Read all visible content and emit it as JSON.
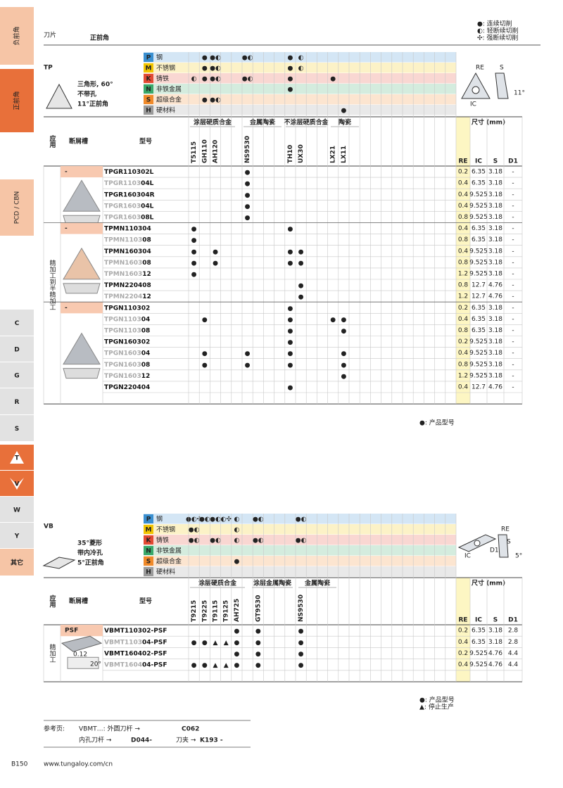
{
  "sidebar": [
    "负前角",
    "正前角",
    "PCD / CBN",
    "C",
    "D",
    "G",
    "R",
    "S",
    "T",
    "V",
    "W",
    "Y",
    "其它"
  ],
  "header": {
    "title": "刀片",
    "subtitle": "正前角",
    "legend": [
      "●: 连续切削",
      "◐: 轻断续切削",
      "✣: 强断续切削"
    ]
  },
  "table_headers": {
    "application": "应用",
    "chipbreaker": "断屑槽",
    "model": "型号",
    "dimensions": "尺寸 (mm)",
    "dims": [
      "RE",
      "IC",
      "S",
      "D1"
    ]
  },
  "tp": {
    "code": "TP",
    "description": [
      "三角形, 60°",
      "不带孔",
      "11°正前角"
    ],
    "diagram": [
      "RE",
      "S",
      "IC",
      "11°"
    ],
    "materials": [
      {
        "letter": "P",
        "name": "钢",
        "color": "#3a8fd0",
        "cells": [
          null,
          "●",
          "●◐",
          null,
          null,
          "●◐",
          null,
          null,
          null,
          "●",
          "◐",
          null,
          null,
          null,
          null
        ]
      },
      {
        "letter": "M",
        "name": "不锈钢",
        "color": "#f2c500",
        "cells": [
          null,
          "●",
          "●◐",
          null,
          null,
          null,
          null,
          null,
          null,
          "●",
          "◐",
          null,
          null,
          null,
          null
        ]
      },
      {
        "letter": "K",
        "name": "铸铁",
        "color": "#e24a33",
        "cells": [
          "◐",
          "●",
          "●◐",
          null,
          null,
          "●◐",
          null,
          null,
          null,
          "●",
          null,
          null,
          null,
          "●",
          null
        ]
      },
      {
        "letter": "N",
        "name": "非铁金属",
        "color": "#39a86a",
        "cells": [
          null,
          null,
          null,
          null,
          null,
          null,
          null,
          null,
          null,
          "●",
          null,
          null,
          null,
          null,
          null
        ]
      },
      {
        "letter": "S",
        "name": "超级合金",
        "color": "#f08a2a",
        "cells": [
          null,
          "●",
          "●◐",
          null,
          null,
          null,
          null,
          null,
          null,
          null,
          null,
          null,
          null,
          null,
          null
        ]
      },
      {
        "letter": "H",
        "name": "硬材料",
        "color": "#9a9a9a",
        "cells": [
          null,
          null,
          null,
          null,
          null,
          null,
          null,
          null,
          null,
          null,
          null,
          null,
          null,
          null,
          "●"
        ]
      }
    ],
    "grade_groups": [
      "涂层硬质合金",
      "金属陶瓷",
      "不涂层硬质合金",
      "陶瓷"
    ],
    "grades": [
      "T5115",
      "GH110",
      "AH120",
      null,
      null,
      "NS9530",
      null,
      null,
      null,
      "TH10",
      "UX30",
      null,
      null,
      "LX21",
      "LX11"
    ],
    "application": "精加工到半精加工",
    "groups": [
      {
        "chipbreaker": "-",
        "rows": [
          {
            "model": "TPGR110302L",
            "cells": [
              null,
              null,
              null,
              null,
              null,
              "●",
              null,
              null,
              null,
              null,
              null,
              null,
              null,
              null,
              null
            ],
            "re": 0.2,
            "ic": 6.35,
            "s": 3.18,
            "d1": "-"
          },
          {
            "model": "TPGR1103",
            "suffix": "04L",
            "cells": [
              null,
              null,
              null,
              null,
              null,
              "●",
              null,
              null,
              null,
              null,
              null,
              null,
              null,
              null,
              null
            ],
            "re": 0.4,
            "ic": 6.35,
            "s": 3.18,
            "d1": "-"
          },
          {
            "model": "TPGR160304R",
            "cells": [
              null,
              null,
              null,
              null,
              null,
              "●",
              null,
              null,
              null,
              null,
              null,
              null,
              null,
              null,
              null
            ],
            "re": 0.4,
            "ic": 9.525,
            "s": 3.18,
            "d1": "-"
          },
          {
            "model": "TPGR1603",
            "suffix": "04L",
            "cells": [
              null,
              null,
              null,
              null,
              null,
              "●",
              null,
              null,
              null,
              null,
              null,
              null,
              null,
              null,
              null
            ],
            "re": 0.4,
            "ic": 9.525,
            "s": 3.18,
            "d1": "-"
          },
          {
            "model": "TPGR1603",
            "suffix": "08L",
            "cells": [
              null,
              null,
              null,
              null,
              null,
              "●",
              null,
              null,
              null,
              null,
              null,
              null,
              null,
              null,
              null
            ],
            "re": 0.8,
            "ic": 9.525,
            "s": 3.18,
            "d1": "-"
          }
        ]
      },
      {
        "chipbreaker": "-",
        "rows": [
          {
            "model": "TPMN110304",
            "cells": [
              "●",
              null,
              null,
              null,
              null,
              null,
              null,
              null,
              null,
              "●",
              null,
              null,
              null,
              null,
              null
            ],
            "re": 0.4,
            "ic": 6.35,
            "s": 3.18,
            "d1": "-"
          },
          {
            "model": "TPMN1103",
            "suffix": "08",
            "cells": [
              "●",
              null,
              null,
              null,
              null,
              null,
              null,
              null,
              null,
              null,
              null,
              null,
              null,
              null,
              null
            ],
            "re": 0.8,
            "ic": 6.35,
            "s": 3.18,
            "d1": "-"
          },
          {
            "model": "TPMN160304",
            "cells": [
              "●",
              null,
              "●",
              null,
              null,
              null,
              null,
              null,
              null,
              "●",
              "●",
              null,
              null,
              null,
              null
            ],
            "re": 0.4,
            "ic": 9.525,
            "s": 3.18,
            "d1": "-"
          },
          {
            "model": "TPMN1603",
            "suffix": "08",
            "cells": [
              "●",
              null,
              "●",
              null,
              null,
              null,
              null,
              null,
              null,
              "●",
              "●",
              null,
              null,
              null,
              null
            ],
            "re": 0.8,
            "ic": 9.525,
            "s": 3.18,
            "d1": "-"
          },
          {
            "model": "TPMN1603",
            "suffix": "12",
            "cells": [
              "●",
              null,
              null,
              null,
              null,
              null,
              null,
              null,
              null,
              null,
              null,
              null,
              null,
              null,
              null
            ],
            "re": 1.2,
            "ic": 9.525,
            "s": 3.18,
            "d1": "-"
          },
          {
            "model": "TPMN220408",
            "cells": [
              null,
              null,
              null,
              null,
              null,
              null,
              null,
              null,
              null,
              null,
              "●",
              null,
              null,
              null,
              null
            ],
            "re": 0.8,
            "ic": 12.7,
            "s": 4.76,
            "d1": "-"
          },
          {
            "model": "TPMN2204",
            "suffix": "12",
            "cells": [
              null,
              null,
              null,
              null,
              null,
              null,
              null,
              null,
              null,
              null,
              "●",
              null,
              null,
              null,
              null
            ],
            "re": 1.2,
            "ic": 12.7,
            "s": 4.76,
            "d1": "-"
          }
        ]
      },
      {
        "chipbreaker": "-",
        "rows": [
          {
            "model": "TPGN110302",
            "cells": [
              null,
              null,
              null,
              null,
              null,
              null,
              null,
              null,
              null,
              "●",
              null,
              null,
              null,
              null,
              null
            ],
            "re": 0.2,
            "ic": 6.35,
            "s": 3.18,
            "d1": "-"
          },
          {
            "model": "TPGN1103",
            "suffix": "04",
            "cells": [
              null,
              "●",
              null,
              null,
              null,
              null,
              null,
              null,
              null,
              "●",
              null,
              null,
              null,
              "●",
              "●"
            ],
            "re": 0.4,
            "ic": 6.35,
            "s": 3.18,
            "d1": "-"
          },
          {
            "model": "TPGN1103",
            "suffix": "08",
            "cells": [
              null,
              null,
              null,
              null,
              null,
              null,
              null,
              null,
              null,
              "●",
              null,
              null,
              null,
              null,
              "●"
            ],
            "re": 0.8,
            "ic": 6.35,
            "s": 3.18,
            "d1": "-"
          },
          {
            "model": "TPGN160302",
            "cells": [
              null,
              null,
              null,
              null,
              null,
              null,
              null,
              null,
              null,
              "●",
              null,
              null,
              null,
              null,
              null
            ],
            "re": 0.2,
            "ic": 9.525,
            "s": 3.18,
            "d1": "-"
          },
          {
            "model": "TPGN1603",
            "suffix": "04",
            "cells": [
              null,
              "●",
              null,
              null,
              null,
              "●",
              null,
              null,
              null,
              "●",
              null,
              null,
              null,
              null,
              "●"
            ],
            "re": 0.4,
            "ic": 9.525,
            "s": 3.18,
            "d1": "-"
          },
          {
            "model": "TPGN1603",
            "suffix": "08",
            "cells": [
              null,
              "●",
              null,
              null,
              null,
              "●",
              null,
              null,
              null,
              "●",
              null,
              null,
              null,
              null,
              "●"
            ],
            "re": 0.8,
            "ic": 9.525,
            "s": 3.18,
            "d1": "-"
          },
          {
            "model": "TPGN1603",
            "suffix": "12",
            "cells": [
              null,
              null,
              null,
              null,
              null,
              null,
              null,
              null,
              null,
              null,
              null,
              null,
              null,
              null,
              "●"
            ],
            "re": 1.2,
            "ic": 9.525,
            "s": 3.18,
            "d1": "-"
          },
          {
            "model": "TPGN220404",
            "cells": [
              null,
              null,
              null,
              null,
              null,
              null,
              null,
              null,
              null,
              "●",
              null,
              null,
              null,
              null,
              null
            ],
            "re": 0.4,
            "ic": 12.7,
            "s": 4.76,
            "d1": "-"
          }
        ]
      }
    ],
    "footnotes": [
      "●: 产品型号"
    ]
  },
  "vb": {
    "code": "VB",
    "description": [
      "35°菱形",
      "带内冷孔",
      "5°正前角"
    ],
    "diagram": [
      "RE",
      "S",
      "IC",
      "D1",
      "5°"
    ],
    "materials": [
      {
        "letter": "P",
        "name": "钢",
        "color": "#3a8fd0",
        "cells": [
          "●◐✣",
          "●◐",
          "●◐",
          "◐✣",
          "◐",
          null,
          "●◐",
          null,
          null,
          null,
          "●◐"
        ]
      },
      {
        "letter": "M",
        "name": "不锈钢",
        "color": "#f2c500",
        "cells": [
          "●◐",
          null,
          null,
          null,
          "◐",
          null,
          null,
          null,
          null,
          null,
          null
        ]
      },
      {
        "letter": "K",
        "name": "铸铁",
        "color": "#e24a33",
        "cells": [
          "●◐",
          null,
          "●◐",
          null,
          "◐",
          null,
          "●◐",
          null,
          null,
          null,
          "●◐"
        ]
      },
      {
        "letter": "N",
        "name": "非铁金属",
        "color": "#39a86a",
        "cells": [
          null,
          null,
          null,
          null,
          null,
          null,
          null,
          null,
          null,
          null,
          null
        ]
      },
      {
        "letter": "S",
        "name": "超级合金",
        "color": "#f08a2a",
        "cells": [
          null,
          null,
          null,
          null,
          "●",
          null,
          null,
          null,
          null,
          null,
          null
        ]
      },
      {
        "letter": "H",
        "name": "硬材料",
        "color": "#9a9a9a",
        "cells": [
          null,
          null,
          null,
          null,
          null,
          null,
          null,
          null,
          null,
          null,
          null
        ]
      }
    ],
    "grade_groups": [
      "涂层硬质合金",
      "涂层金属陶瓷",
      "金属陶瓷"
    ],
    "grades": [
      "T9215",
      "T9225",
      "T9115",
      "T9125",
      "AH725",
      null,
      "GT9530",
      null,
      null,
      null,
      "NS9530"
    ],
    "application": "精加工",
    "chip_dims": [
      "0.12",
      "20°"
    ],
    "groups": [
      {
        "chipbreaker": "PSF",
        "rows": [
          {
            "model": "VBMT110302-PSF",
            "cells": [
              null,
              null,
              null,
              null,
              "●",
              null,
              "●",
              null,
              null,
              null,
              "●"
            ],
            "re": 0.2,
            "ic": 6.35,
            "s": 3.18,
            "d1": 2.8
          },
          {
            "model": "VBMT1103",
            "suffix": "04-PSF",
            "cells": [
              "●",
              "●",
              "▲",
              "▲",
              "●",
              null,
              "●",
              null,
              null,
              null,
              "●"
            ],
            "re": 0.4,
            "ic": 6.35,
            "s": 3.18,
            "d1": 2.8
          },
          {
            "model": "VBMT160402-PSF",
            "cells": [
              null,
              null,
              null,
              null,
              "●",
              null,
              "●",
              null,
              null,
              null,
              "●"
            ],
            "re": 0.2,
            "ic": 9.525,
            "s": 4.76,
            "d1": 4.4
          },
          {
            "model": "VBMT1604",
            "suffix": "04-PSF",
            "cells": [
              "●",
              "●",
              "▲",
              "▲",
              "●",
              null,
              "●",
              null,
              null,
              null,
              "●"
            ],
            "re": 0.4,
            "ic": 9.525,
            "s": 4.76,
            "d1": 4.4
          }
        ]
      }
    ],
    "footnotes": [
      "●: 产品型号",
      "▲: 停止生产"
    ]
  },
  "reference": {
    "label": "参考页:",
    "line1": "VBMT…: 外圆刀杆 →",
    "page1": "C062",
    "holder2": "内孔刀杆 →",
    "page2": "D044-",
    "holder3": "刀夹 →",
    "page3": "K193 -"
  },
  "footer": {
    "page": "B150",
    "url": "www.tungaloy.com/cn"
  }
}
